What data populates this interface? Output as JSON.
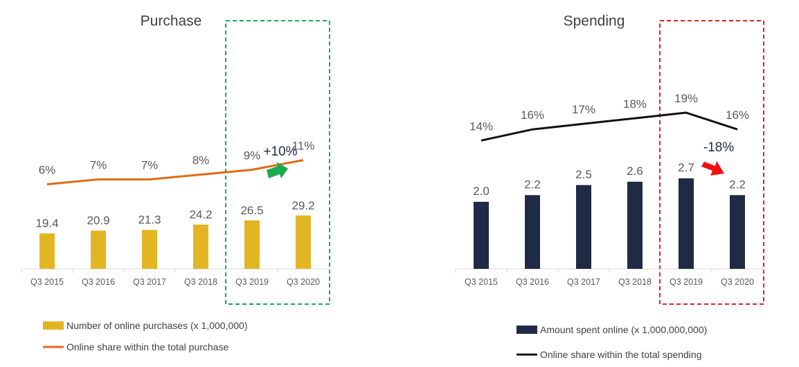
{
  "chart_data": [
    {
      "type": "bar+line",
      "title": "Purchase",
      "categories": [
        "Q3 2015",
        "Q3 2016",
        "Q3 2017",
        "Q3 2018",
        "Q3 2019",
        "Q3 2020"
      ],
      "series": [
        {
          "name": "Number of online purchases (x 1,000,000)",
          "kind": "bar",
          "values": [
            19.4,
            20.9,
            21.3,
            24.2,
            26.5,
            29.2
          ],
          "labels": [
            "19.4",
            "20.9",
            "21.3",
            "24.2",
            "26.5",
            "29.2"
          ]
        },
        {
          "name": "Online share within the total purchase",
          "kind": "line",
          "values": [
            6,
            7,
            7,
            8,
            9,
            11
          ],
          "labels": [
            "6%",
            "7%",
            "7%",
            "8%",
            "9%",
            "11%"
          ]
        }
      ],
      "annotation": {
        "text": "+10%",
        "direction": "up"
      },
      "highlight_categories": [
        "Q3 2019",
        "Q3 2020"
      ],
      "colors": {
        "bar": "#E2B623",
        "line": "#E06A13",
        "box": "#1AAA4F",
        "arrow": "#1AAA4F"
      }
    },
    {
      "type": "bar+line",
      "title": "Spending",
      "categories": [
        "Q3 2015",
        "Q3 2016",
        "Q3 2017",
        "Q3 2018",
        "Q3 2019",
        "Q3 2020"
      ],
      "series": [
        {
          "name": "Amount spent online (x 1,000,000,000)",
          "kind": "bar",
          "values": [
            2.0,
            2.2,
            2.5,
            2.6,
            2.7,
            2.2
          ],
          "labels": [
            "2.0",
            "2.2",
            "2.5",
            "2.6",
            "2.7",
            "2.2"
          ]
        },
        {
          "name": "Online share within the total spending",
          "kind": "line",
          "values": [
            14,
            16,
            17,
            18,
            19,
            16
          ],
          "labels": [
            "14%",
            "16%",
            "17%",
            "18%",
            "19%",
            "16%"
          ]
        }
      ],
      "annotation": {
        "text": "-18%",
        "direction": "down"
      },
      "highlight_categories": [
        "Q3 2019",
        "Q3 2020"
      ],
      "colors": {
        "bar": "#1F2A44",
        "line": "#111111",
        "box": "#E02020",
        "arrow": "#F01010"
      }
    }
  ]
}
